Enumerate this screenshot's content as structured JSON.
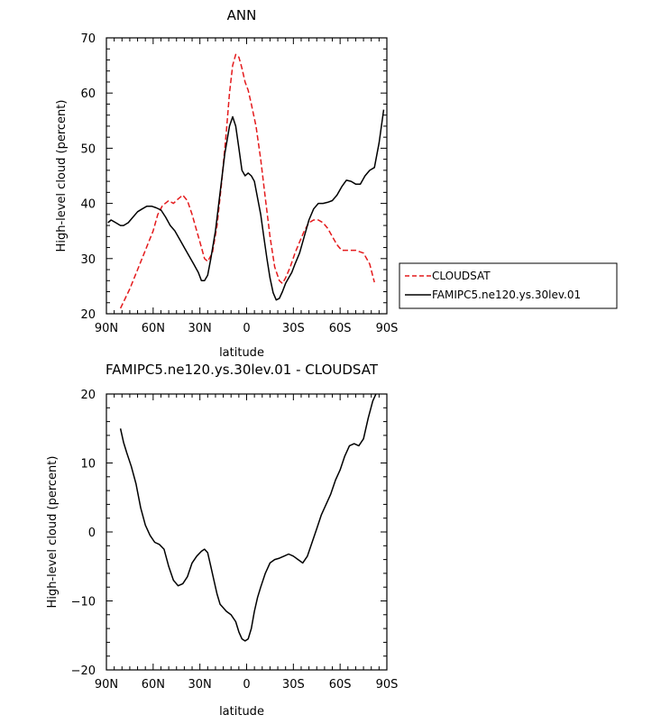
{
  "chart_data": [
    {
      "type": "line",
      "title": "ANN",
      "xlabel": "latitude",
      "ylabel": "High-level cloud (percent)",
      "xlim": [
        90,
        -90
      ],
      "ylim": [
        20,
        70
      ],
      "xticks": [
        90,
        60,
        30,
        0,
        -30,
        -60,
        -90
      ],
      "xtick_labels": [
        "90N",
        "60N",
        "30N",
        "0",
        "30S",
        "60S",
        "90S"
      ],
      "yticks": [
        20,
        30,
        40,
        50,
        60,
        70
      ],
      "ytick_labels": [
        "20",
        "30",
        "40",
        "50",
        "60",
        "70"
      ],
      "legend_position": "right",
      "series": [
        {
          "name": "CLOUDSAT",
          "color": "#e41a1c",
          "dash": "dashed",
          "x": [
            81,
            75,
            70,
            65,
            60,
            57,
            54,
            50,
            47,
            44,
            41,
            38,
            35,
            32,
            30,
            27,
            25,
            22,
            19,
            16,
            13,
            11,
            9,
            7,
            5,
            3,
            1,
            -1,
            -3,
            -6,
            -9,
            -12,
            -15,
            -18,
            -21,
            -23,
            -25,
            -28,
            -31,
            -34,
            -37,
            -40,
            -43,
            -46,
            -49,
            -52,
            -55,
            -58,
            -61,
            -65,
            -70,
            -75,
            -79,
            -82
          ],
          "y": [
            21,
            24.5,
            28,
            31.5,
            35,
            38,
            39.6,
            40.5,
            40,
            40.8,
            41.5,
            40.5,
            38,
            35,
            33,
            30,
            29.5,
            31,
            36,
            44,
            53,
            60,
            65,
            67,
            66.5,
            64.5,
            62,
            60.5,
            58,
            54,
            48,
            41,
            34,
            28.5,
            26,
            25.5,
            26.5,
            28.5,
            31,
            33,
            35,
            36.5,
            37,
            37,
            36.5,
            35.5,
            34,
            32.5,
            31.5,
            31.5,
            31.5,
            31,
            29,
            25.7
          ]
        },
        {
          "name": "FAMIPC5.ne120.ys.30lev.01",
          "color": "#000000",
          "dash": "solid",
          "x": [
            89,
            87,
            84,
            81,
            79,
            76,
            73,
            70,
            67,
            64,
            61,
            58,
            55,
            52,
            49,
            46,
            43,
            40,
            37,
            34,
            31,
            29,
            27,
            25,
            23,
            20,
            17,
            14,
            11,
            9,
            7,
            5,
            3,
            1,
            -1,
            -3,
            -5,
            -7,
            -9,
            -11,
            -13,
            -15,
            -17,
            -19,
            -21,
            -23,
            -25,
            -27,
            -29,
            -31,
            -34,
            -37,
            -40,
            -43,
            -46,
            -49,
            -52,
            -55,
            -58,
            -61,
            -64,
            -67,
            -70,
            -73,
            -76,
            -79,
            -82,
            -85,
            -88
          ],
          "y": [
            36.5,
            37,
            36.5,
            36,
            36,
            36.5,
            37.5,
            38.5,
            39,
            39.5,
            39.5,
            39.2,
            38.8,
            37.5,
            36,
            35,
            33.5,
            32,
            30.5,
            29,
            27.5,
            26,
            26,
            27,
            30,
            35,
            42,
            49,
            54,
            55.7,
            54,
            50,
            46,
            45,
            45.5,
            45,
            44,
            41,
            38,
            34,
            30,
            26.5,
            23.8,
            22.5,
            22.8,
            24,
            25.5,
            26.5,
            27.5,
            29,
            31,
            34,
            37,
            39,
            40,
            40,
            40.2,
            40.5,
            41.5,
            43,
            44.2,
            44,
            43.5,
            43.5,
            45,
            46,
            46.5,
            51,
            57
          ]
        }
      ]
    },
    {
      "type": "line",
      "title": "FAMIPC5.ne120.ys.30lev.01 - CLOUDSAT",
      "xlabel": "latitude",
      "ylabel": "High-level cloud (percent)",
      "xlim": [
        90,
        -90
      ],
      "ylim": [
        -20,
        20
      ],
      "xticks": [
        90,
        60,
        30,
        0,
        -30,
        -60,
        -90
      ],
      "xtick_labels": [
        "90N",
        "60N",
        "30N",
        "0",
        "30S",
        "60S",
        "90S"
      ],
      "yticks": [
        -20,
        -10,
        0,
        10,
        20
      ],
      "ytick_labels": [
        "−20",
        "−10",
        "0",
        "10",
        "20"
      ],
      "series": [
        {
          "color": "#000000",
          "dash": "solid",
          "x": [
            81,
            79,
            77,
            74,
            71,
            68,
            65,
            62,
            59,
            56,
            53,
            50,
            47,
            44,
            41,
            38,
            35,
            32,
            29,
            27,
            25,
            23,
            21,
            19,
            17,
            15,
            13,
            10,
            7,
            5,
            3,
            1,
            -1,
            -3,
            -5,
            -7,
            -9,
            -12,
            -15,
            -18,
            -21,
            -24,
            -27,
            -30,
            -33,
            -36,
            -39,
            -42,
            -45,
            -48,
            -51,
            -54,
            -57,
            -60,
            -63,
            -66,
            -69,
            -72,
            -75,
            -78,
            -81,
            -83
          ],
          "y": [
            15,
            13,
            11.5,
            9.5,
            7,
            3.5,
            1,
            -0.5,
            -1.5,
            -1.8,
            -2.5,
            -5,
            -7,
            -7.8,
            -7.5,
            -6.5,
            -4.5,
            -3.5,
            -2.8,
            -2.5,
            -3,
            -5,
            -7,
            -9,
            -10.5,
            -11,
            -11.5,
            -12,
            -13,
            -14.5,
            -15.5,
            -15.8,
            -15.5,
            -14,
            -11.5,
            -9.5,
            -8,
            -6,
            -4.5,
            -4,
            -3.8,
            -3.5,
            -3.2,
            -3.5,
            -4,
            -4.5,
            -3.5,
            -1.5,
            0.5,
            2.5,
            4,
            5.5,
            7.5,
            9,
            11,
            12.5,
            12.8,
            12.5,
            13.5,
            16.5,
            19,
            20
          ]
        }
      ]
    }
  ]
}
